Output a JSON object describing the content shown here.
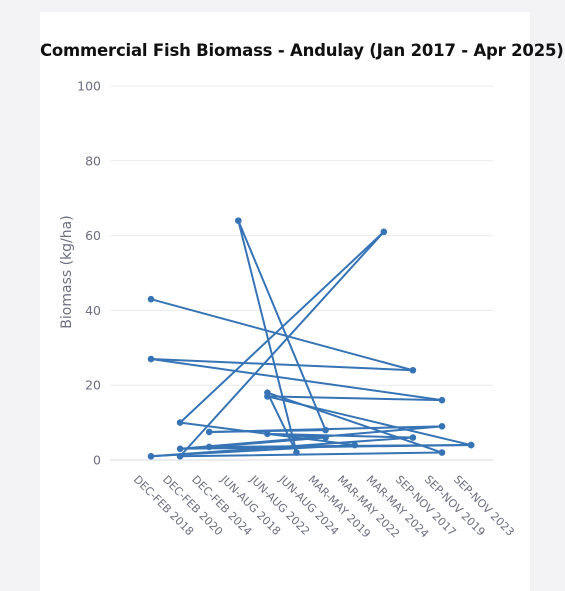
{
  "chart_data": {
    "type": "line",
    "title": "Commercial Fish Biomass - Andulay (Jan 2017 - Apr 2025)",
    "xlabel": "",
    "ylabel": "Biomass (kg/ha)",
    "ylim": [
      0,
      100
    ],
    "y_ticks": [
      0,
      20,
      40,
      60,
      80,
      100
    ],
    "grid": true,
    "legend": "none",
    "color": "#3674b5",
    "categories": [
      "DEC-FEB 2018",
      "DEC-FEB 2020",
      "DEC-FEB 2024",
      "JUN-AUG 2018",
      "JUN-AUG 2022",
      "JUN-AUG 2024",
      "MAR-MAY 2019",
      "MAR-MAY 2022",
      "MAR-MAY 2024",
      "SEP-NOV 2017",
      "SEP-NOV 2019",
      "SEP-NOV 2023"
    ],
    "points": [
      {
        "x": "DEC-FEB 2018",
        "y": 43.0
      },
      {
        "x": "SEP-NOV 2017",
        "y": 24.0
      },
      {
        "x": "DEC-FEB 2018",
        "y": 27.0
      },
      {
        "x": "SEP-NOV 2019",
        "y": 16.0
      },
      {
        "x": "JUN-AUG 2022",
        "y": 17.0
      },
      {
        "x": "SEP-NOV 2023",
        "y": 4.0
      },
      {
        "x": "DEC-FEB 2020",
        "y": 3.0
      },
      {
        "x": "SEP-NOV 2019",
        "y": 9.0
      },
      {
        "x": "DEC-FEB 2024",
        "y": 7.5
      },
      {
        "x": "MAR-MAY 2019",
        "y": 8.0
      },
      {
        "x": "JUN-AUG 2018",
        "y": 64.0
      },
      {
        "x": "JUN-AUG 2024",
        "y": 2.0
      },
      {
        "x": "JUN-AUG 2022",
        "y": 18.0
      },
      {
        "x": "SEP-NOV 2019",
        "y": 2.0
      },
      {
        "x": "DEC-FEB 2020",
        "y": 1.0
      },
      {
        "x": "MAR-MAY 2024",
        "y": 61.0
      },
      {
        "x": "DEC-FEB 2020",
        "y": 10.0
      },
      {
        "x": "MAR-MAY 2022",
        "y": 4.0
      },
      {
        "x": "DEC-FEB 2018",
        "y": 1.0
      },
      {
        "x": "SEP-NOV 2017",
        "y": 6.0
      },
      {
        "x": "JUN-AUG 2022",
        "y": 7.0
      },
      {
        "x": "MAR-MAY 2019",
        "y": 6.0
      },
      {
        "x": "DEC-FEB 2024",
        "y": 3.5
      },
      {
        "x": "SEP-NOV 2023",
        "y": 4.0
      }
    ]
  }
}
